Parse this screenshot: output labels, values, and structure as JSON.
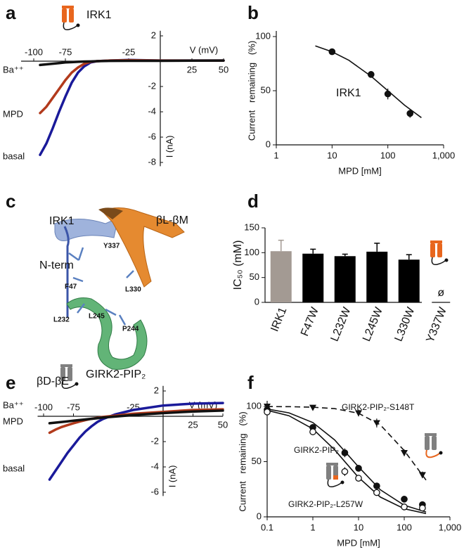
{
  "panel_labels": [
    "a",
    "b",
    "c",
    "d",
    "e",
    "f"
  ],
  "chart_data": [
    {
      "type": "iv",
      "title": "IRK1",
      "x_label": "V (mV)",
      "y_label": "I (nA)",
      "x": [
        -95,
        -90,
        -85,
        -80,
        -75,
        -70,
        -65,
        -60,
        -55,
        -50,
        -40,
        -25,
        0,
        25,
        50
      ],
      "xlim": [
        -110,
        50
      ],
      "xticks": [
        -100,
        -75,
        -25,
        25,
        50
      ],
      "ylim": [
        -8.3,
        2.4
      ],
      "yticks": [
        2,
        -2,
        -4,
        -6,
        -8
      ],
      "series": [
        {
          "name": "Ba⁺⁺",
          "color": "#111111",
          "values": [
            -0.3,
            -0.25,
            -0.2,
            -0.15,
            -0.1,
            -0.08,
            -0.05,
            -0.03,
            -0.02,
            0,
            0.02,
            0.03,
            0.03,
            0.04,
            0.05
          ]
        },
        {
          "name": "MPD",
          "color": "#b23a1c",
          "values": [
            -4.1,
            -3.6,
            -2.9,
            -2.2,
            -1.5,
            -0.9,
            -0.5,
            -0.2,
            -0.05,
            0,
            0.05,
            0.08,
            0.05,
            0.05,
            0.05
          ]
        },
        {
          "name": "basal",
          "color": "#1a1a9a",
          "values": [
            -7.4,
            -6.5,
            -5.3,
            -4.0,
            -2.8,
            -1.7,
            -0.9,
            -0.4,
            -0.1,
            0,
            0.05,
            0.1,
            0.05,
            0.05,
            0.05
          ]
        }
      ]
    },
    {
      "type": "dose",
      "x_label": "MPD [mM]",
      "y_label": "Current   remaining   (%)",
      "log_x": true,
      "xlim": [
        1,
        1000
      ],
      "xticks": [
        1,
        10,
        100,
        {
          "value": 1000,
          "label": "1,000"
        }
      ],
      "ylim": [
        0,
        100
      ],
      "yticks": [
        0,
        50,
        100
      ],
      "annotation": "IRK1",
      "series": [
        {
          "color": "#111111",
          "marker": "filled-circle",
          "dashed": false,
          "x": [
            10,
            50,
            100,
            250
          ],
          "values": [
            86,
            65,
            47,
            29
          ],
          "errors": [
            2,
            3,
            5,
            4
          ],
          "fit_x": [
            5,
            10,
            20,
            50,
            100,
            200,
            400
          ],
          "fit": [
            91.4,
            86,
            78.1,
            63.4,
            50,
            36.6,
            25.1
          ]
        }
      ]
    },
    {
      "type": "bar",
      "y_label": "IC₅₀ (mM)",
      "categories": [
        "IRK1",
        "F47W",
        "L232W",
        "L245W",
        "L330W",
        "Y337W"
      ],
      "values": [
        103,
        98,
        93,
        102,
        86,
        null
      ],
      "errors": [
        22,
        9,
        4,
        17,
        10,
        null
      ],
      "colors": [
        "#a39a93",
        "#000000",
        "#000000",
        "#000000",
        "#000000",
        "#000000"
      ],
      "ylim": [
        0,
        150
      ],
      "yticks": [
        0,
        50,
        100,
        150
      ],
      "annotation": "ø"
    },
    {
      "type": "iv",
      "title": "GIRK2-PIP₂",
      "x_label": "V (mV)",
      "y_label": "I (nA)",
      "x": [
        -95,
        -90,
        -85,
        -80,
        -75,
        -70,
        -65,
        -60,
        -55,
        -50,
        -40,
        -25,
        0,
        25,
        50
      ],
      "xlim": [
        -105,
        50
      ],
      "xticks": [
        -100,
        -75,
        -25,
        25,
        50
      ],
      "ylim": [
        -6.3,
        2.4
      ],
      "yticks": [
        2,
        -2,
        -4,
        -6
      ],
      "series": [
        {
          "name": "Ba⁺⁺",
          "color": "#111111",
          "values": [
            -0.55,
            -0.5,
            -0.45,
            -0.4,
            -0.35,
            -0.3,
            -0.25,
            -0.2,
            -0.15,
            -0.1,
            -0.02,
            0.1,
            0.25,
            0.38,
            0.45
          ]
        },
        {
          "name": "MPD",
          "color": "#b23a1c",
          "values": [
            -1.3,
            -1.05,
            -0.85,
            -0.7,
            -0.55,
            -0.42,
            -0.3,
            -0.2,
            -0.12,
            -0.05,
            0.05,
            0.2,
            0.35,
            0.5,
            0.55
          ]
        },
        {
          "name": "basal",
          "color": "#1a1a9a",
          "values": [
            -5,
            -4.3,
            -3.6,
            -2.9,
            -2.3,
            -1.7,
            -1.2,
            -0.8,
            -0.45,
            -0.2,
            0.15,
            0.5,
            0.85,
            1.0,
            1.05
          ]
        }
      ]
    },
    {
      "type": "dose",
      "x_label": "MPD [mM]",
      "y_label": "Current   remaining   (%)",
      "log_x": true,
      "xlim": [
        0.1,
        1000
      ],
      "xticks": [
        0.1,
        1,
        10,
        100,
        {
          "value": 1000,
          "label": "1,000"
        }
      ],
      "ylim": [
        0,
        100
      ],
      "yticks": [
        0,
        50,
        100
      ],
      "series": [
        {
          "name": "GIRK2-PIP₂-S148T",
          "color": "#111111",
          "marker": "triangle",
          "dashed": true,
          "x": [
            0.1,
            1,
            10,
            25,
            100,
            250
          ],
          "values": [
            100,
            99,
            94,
            85,
            58,
            38
          ],
          "errors": [
            1,
            2,
            3,
            4,
            3,
            3
          ],
          "fit_x": [
            0.1,
            0.3,
            1,
            3,
            10,
            30,
            100,
            300
          ],
          "fit": [
            99.9,
            99.8,
            99.3,
            98,
            93.8,
            83.3,
            60,
            33.3
          ]
        },
        {
          "name": "GIRK2-PIP₂",
          "color": "#111111",
          "marker": "filled-circle",
          "dashed": false,
          "x": [
            0.1,
            1,
            5,
            10,
            25,
            100,
            250
          ],
          "values": [
            97,
            81,
            58,
            44,
            28,
            16,
            11
          ],
          "errors": [
            2,
            2,
            4,
            3,
            2,
            2,
            1
          ],
          "fit_x": [
            0.1,
            0.3,
            1,
            3,
            10,
            30,
            100,
            300
          ],
          "fit": [
            97.7,
            94.2,
            85.4,
            69.7,
            45.3,
            24.5,
            10.5,
            4.4
          ]
        },
        {
          "name": "GIRK2-PIP₂-L257W",
          "color": "#111111",
          "marker": "open-circle",
          "dashed": false,
          "x": [
            0.1,
            1,
            5,
            10,
            25,
            100,
            250
          ],
          "values": [
            95,
            77,
            41,
            35,
            22,
            9,
            8
          ],
          "errors": [
            2,
            2,
            4,
            3,
            3,
            2,
            1
          ],
          "fit_x": [
            0.1,
            0.3,
            1,
            3,
            10,
            30,
            100,
            300
          ],
          "fit": [
            96.5,
            91.6,
            79.7,
            60.7,
            35.7,
            17.9,
            7.3,
            3
          ]
        }
      ]
    }
  ],
  "structure": {
    "labels": [
      "IRK1",
      "βL-βM",
      "N-term",
      "Y337",
      "F47",
      "L330",
      "L232",
      "L245",
      "P244",
      "βD-βE"
    ]
  }
}
